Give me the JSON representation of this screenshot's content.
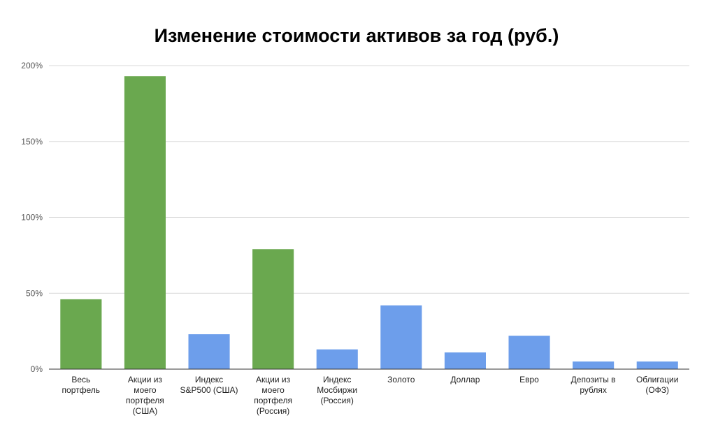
{
  "chart_data": {
    "type": "bar",
    "title": "Изменение стоимости активов за год (руб.)",
    "xlabel": "",
    "ylabel": "",
    "ylim": [
      0,
      200
    ],
    "yticks": [
      0,
      50,
      100,
      150,
      200
    ],
    "ytick_labels": [
      "0%",
      "50%",
      "100%",
      "150%",
      "200%"
    ],
    "grid": true,
    "legend": "none",
    "categories": [
      [
        "Весь",
        "портфель"
      ],
      [
        "Акции из",
        "моего",
        "портфеля",
        "(США)"
      ],
      [
        "Индекс",
        "S&P500 (США)"
      ],
      [
        "Акции из",
        "моего",
        "портфеля",
        "(Россия)"
      ],
      [
        "Индекс",
        "Мосбиржи",
        "(Россия)"
      ],
      [
        "Золото"
      ],
      [
        "Доллар"
      ],
      [
        "Евро"
      ],
      [
        "Депозиты в",
        "рублях"
      ],
      [
        "Облигации",
        "(ОФЗ)"
      ]
    ],
    "values": [
      46,
      193,
      23,
      79,
      13,
      42,
      11,
      22,
      5,
      5
    ],
    "bar_colors": [
      "#6aa84f",
      "#6aa84f",
      "#6d9eeb",
      "#6aa84f",
      "#6d9eeb",
      "#6d9eeb",
      "#6d9eeb",
      "#6d9eeb",
      "#6d9eeb",
      "#6d9eeb"
    ]
  }
}
